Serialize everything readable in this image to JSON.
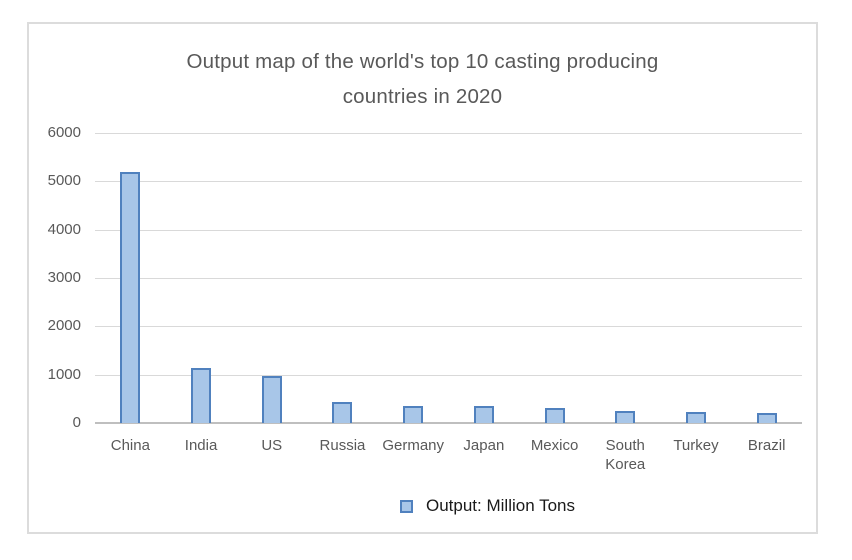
{
  "title": "Output map of the world's top 10 casting producing countries in 2020",
  "legend": {
    "label": "Output: Million Tons"
  },
  "colors": {
    "bar_fill": "#a8c6e8",
    "bar_border": "#5081be",
    "gridline": "#d9d9d9",
    "axis_line": "#bfbfbf",
    "frame_border": "#dcdcdc",
    "text_gray": "#595959",
    "legend_text": "#1a1a1a"
  },
  "chart_data": {
    "type": "bar",
    "title": "Output map of the world's top 10 casting producing countries in 2020",
    "categories": [
      "China",
      "India",
      "US",
      "Russia",
      "Germany",
      "Japan",
      "Mexico",
      "South Korea",
      "Turkey",
      "Brazil"
    ],
    "values": [
      5190,
      1130,
      980,
      430,
      360,
      360,
      300,
      250,
      230,
      200
    ],
    "series_name": "Output: Million Tons",
    "xlabel": "",
    "ylabel": "",
    "ylim": [
      0,
      6000
    ],
    "yticks": [
      0,
      1000,
      2000,
      3000,
      4000,
      5000,
      6000
    ],
    "grid": true,
    "legend_position": "bottom"
  }
}
